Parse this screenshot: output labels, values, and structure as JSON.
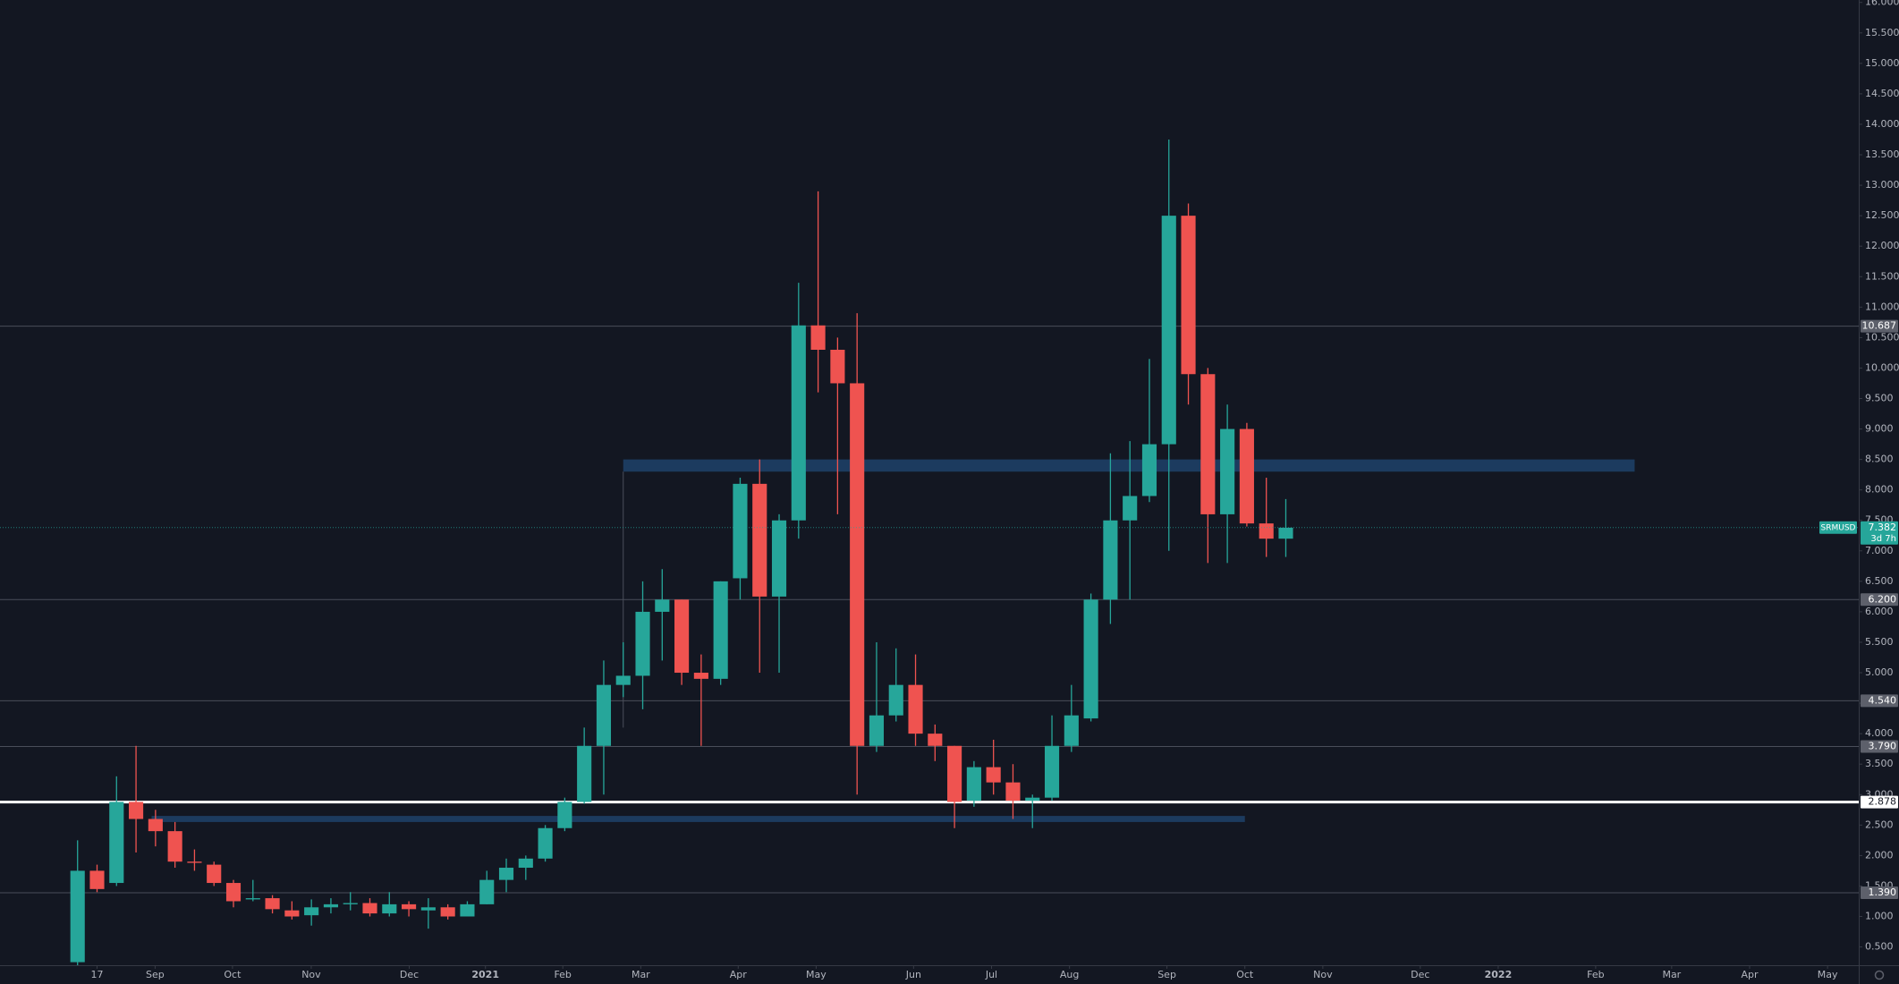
{
  "chart_data": {
    "type": "candlestick",
    "symbol": "SRMUSD",
    "last_price": 7.382,
    "countdown": "3d 7h",
    "colors": {
      "up": "#26a69a",
      "down": "#ef5350",
      "zone": "#1e3f66",
      "level": "#4a4e5a",
      "key_level": "#ffffff"
    },
    "xlim": [
      -3.98,
      91.4
    ],
    "ylim": [
      0.2,
      16.04
    ],
    "xticks": [
      {
        "value": 1,
        "label": "17"
      },
      {
        "value": 3.98,
        "label": "Sep"
      },
      {
        "value": 7.95,
        "label": "Oct"
      },
      {
        "value": 11.99,
        "label": "Nov"
      },
      {
        "value": 17.02,
        "label": "Dec"
      },
      {
        "value": 20.93,
        "label": "2021"
      },
      {
        "value": 24.9,
        "label": "Feb"
      },
      {
        "value": 28.9,
        "label": "Mar"
      },
      {
        "value": 33.9,
        "label": "Apr"
      },
      {
        "value": 37.9,
        "label": "May"
      },
      {
        "value": 42.9,
        "label": "Jun"
      },
      {
        "value": 46.9,
        "label": "Jul"
      },
      {
        "value": 50.9,
        "label": "Aug"
      },
      {
        "value": 55.9,
        "label": "Sep"
      },
      {
        "value": 59.9,
        "label": "Oct"
      },
      {
        "value": 63.9,
        "label": "Nov"
      },
      {
        "value": 68.9,
        "label": "Dec"
      },
      {
        "value": 72.9,
        "label": "2022"
      },
      {
        "value": 77.9,
        "label": "Feb"
      },
      {
        "value": 81.8,
        "label": "Mar"
      },
      {
        "value": 85.8,
        "label": "Apr"
      },
      {
        "value": 89.8,
        "label": "May"
      }
    ],
    "yticks": [
      {
        "value": 0.5,
        "label": "0.500"
      },
      {
        "value": 1,
        "label": "1.000"
      },
      {
        "value": 1.5,
        "label": "1.500"
      },
      {
        "value": 2,
        "label": "2.000"
      },
      {
        "value": 2.5,
        "label": "2.500"
      },
      {
        "value": 3,
        "label": "3.000"
      },
      {
        "value": 3.5,
        "label": "3.500"
      },
      {
        "value": 4,
        "label": "4.000"
      },
      {
        "value": 4.5,
        "label": "4.500"
      },
      {
        "value": 5,
        "label": "5.000"
      },
      {
        "value": 5.5,
        "label": "5.500"
      },
      {
        "value": 6,
        "label": "6.000"
      },
      {
        "value": 6.5,
        "label": "6.500"
      },
      {
        "value": 7,
        "label": "7.000"
      },
      {
        "value": 7.5,
        "label": "7.500"
      },
      {
        "value": 8,
        "label": "8.000"
      },
      {
        "value": 8.5,
        "label": "8.500"
      },
      {
        "value": 9,
        "label": "9.000"
      },
      {
        "value": 9.5,
        "label": "9.500"
      },
      {
        "value": 10,
        "label": "10.000"
      },
      {
        "value": 10.5,
        "label": "10.500"
      },
      {
        "value": 11,
        "label": "11.000"
      },
      {
        "value": 11.5,
        "label": "11.500"
      },
      {
        "value": 12,
        "label": "12.000"
      },
      {
        "value": 12.5,
        "label": "12.500"
      },
      {
        "value": 13,
        "label": "13.000"
      },
      {
        "value": 13.5,
        "label": "13.500"
      },
      {
        "value": 14,
        "label": "14.000"
      },
      {
        "value": 14.5,
        "label": "14.500"
      },
      {
        "value": 15,
        "label": "15.000"
      },
      {
        "value": 15.5,
        "label": "15.500"
      },
      {
        "value": 16,
        "label": "16.000"
      }
    ],
    "levels": [
      10.687,
      {
        "value": 6.2,
        "label": "6.200"
      },
      {
        "value": 4.54,
        "label": "4.540"
      },
      {
        "value": 3.79,
        "label": "3.790"
      },
      {
        "value": 1.39,
        "label": "1.390"
      }
    ],
    "key_level": 2.878,
    "zones": [
      {
        "low": 8.3,
        "high": 8.5,
        "start": 28,
        "end": 79.9
      },
      {
        "low": 2.55,
        "high": 2.65,
        "start": 3.8,
        "end": 59.9
      }
    ],
    "open": [
      0.25,
      1.75,
      1.55,
      2.88,
      2.6,
      2.4,
      1.9,
      1.85,
      1.55,
      1.28,
      1.3,
      1.1,
      1.02,
      1.15,
      1.2,
      1.22,
      1.05,
      1.2,
      1.1,
      1.15,
      1.0,
      1.2,
      1.6,
      1.8,
      1.95,
      2.45,
      2.88,
      3.8,
      4.8,
      4.95,
      6.0,
      6.2,
      5.0,
      4.9,
      6.55,
      8.1,
      6.25,
      7.5,
      10.7,
      10.3,
      9.75,
      3.8,
      4.3,
      4.8,
      4.0,
      3.8,
      2.9,
      3.45,
      3.2,
      2.9,
      2.95,
      3.8,
      4.25,
      6.2,
      7.5,
      7.9,
      8.75,
      12.5,
      9.9,
      7.6,
      9.0,
      7.45,
      7.2
    ],
    "high": [
      2.25,
      1.85,
      3.3,
      3.8,
      2.75,
      2.55,
      2.1,
      1.9,
      1.6,
      1.6,
      1.35,
      1.25,
      1.28,
      1.3,
      1.4,
      1.3,
      1.4,
      1.25,
      1.3,
      1.2,
      1.25,
      1.75,
      1.95,
      2.0,
      2.5,
      2.95,
      4.1,
      5.2,
      5.5,
      6.5,
      6.7,
      6.2,
      5.3,
      6.5,
      8.2,
      8.5,
      7.6,
      11.4,
      12.9,
      10.5,
      10.9,
      5.5,
      5.4,
      5.3,
      4.15,
      3.8,
      3.55,
      3.9,
      3.5,
      3.0,
      4.3,
      4.8,
      6.3,
      8.6,
      8.8,
      10.15,
      13.75,
      12.7,
      10.0,
      9.4,
      9.1,
      8.2,
      7.85
    ],
    "low": [
      0.2,
      1.4,
      1.5,
      2.05,
      2.15,
      1.8,
      1.75,
      1.5,
      1.15,
      1.25,
      1.05,
      0.95,
      0.85,
      1.05,
      1.1,
      1.0,
      1.0,
      1.0,
      0.8,
      0.95,
      1.0,
      1.2,
      1.4,
      1.6,
      1.9,
      2.4,
      2.85,
      3.0,
      4.6,
      4.4,
      5.2,
      4.8,
      3.8,
      4.8,
      6.2,
      5.0,
      5.0,
      7.2,
      9.6,
      7.6,
      3.0,
      3.7,
      4.2,
      3.8,
      3.55,
      2.45,
      2.8,
      3.0,
      2.6,
      2.45,
      2.9,
      3.7,
      4.2,
      5.8,
      6.2,
      7.8,
      7.0,
      9.4,
      6.8,
      6.8,
      7.4,
      6.9,
      6.9
    ],
    "close": [
      1.75,
      1.45,
      2.88,
      2.6,
      2.4,
      1.9,
      1.88,
      1.55,
      1.25,
      1.3,
      1.12,
      1.0,
      1.15,
      1.2,
      1.22,
      1.05,
      1.2,
      1.12,
      1.15,
      1.0,
      1.2,
      1.6,
      1.8,
      1.95,
      2.45,
      2.88,
      3.8,
      4.8,
      4.95,
      6.0,
      6.2,
      5.0,
      4.9,
      6.5,
      8.1,
      6.25,
      7.5,
      10.7,
      10.3,
      9.75,
      3.8,
      4.3,
      4.8,
      4.0,
      3.8,
      2.88,
      3.45,
      3.2,
      2.9,
      2.95,
      3.8,
      4.3,
      6.2,
      7.5,
      7.9,
      8.75,
      12.5,
      9.9,
      7.6,
      9.0,
      7.45,
      7.2,
      7.38
    ]
  }
}
